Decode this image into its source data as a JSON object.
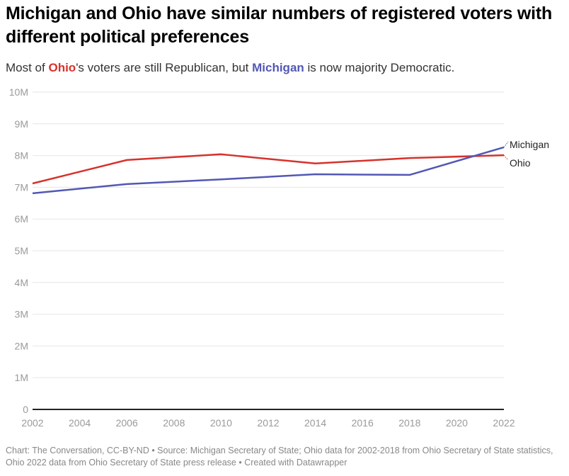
{
  "header": {
    "title": "Michigan and Ohio have similar numbers of registered voters with different political preferences",
    "subtitle_parts": {
      "p1": "Most of ",
      "ohio": "Ohio",
      "p2": "'s voters are still Republican, but ",
      "michigan": "Michigan",
      "p3": " is now majority Democratic."
    }
  },
  "footer": {
    "text": "Chart: The Conversation, CC-BY-ND • Source: Michigan Secretary of State; Ohio data for 2002-2018 from Ohio Secretary of State statistics, Ohio 2022 data from Ohio Secretary of State press release • Created with Datawrapper"
  },
  "chart_data": {
    "type": "line",
    "title": "Michigan and Ohio have similar numbers of registered voters with different political preferences",
    "subtitle": "Most of Ohio's voters are still Republican, but Michigan is now majority Democratic.",
    "xlabel": "",
    "ylabel": "",
    "x": [
      2002,
      2006,
      2010,
      2014,
      2018,
      2022
    ],
    "xlim": [
      2002,
      2022
    ],
    "ylim": [
      0,
      10000000
    ],
    "xticks": [
      "2002",
      "2004",
      "2006",
      "2008",
      "2010",
      "2012",
      "2014",
      "2016",
      "2018",
      "2020",
      "2022"
    ],
    "xtick_values": [
      2002,
      2004,
      2006,
      2008,
      2010,
      2012,
      2014,
      2016,
      2018,
      2020,
      2022
    ],
    "yticks": [
      "0",
      "1M",
      "2M",
      "3M",
      "4M",
      "5M",
      "6M",
      "7M",
      "8M",
      "9M",
      "10M"
    ],
    "ytick_values": [
      0,
      1000000,
      2000000,
      3000000,
      4000000,
      5000000,
      6000000,
      7000000,
      8000000,
      9000000,
      10000000
    ],
    "grid": true,
    "legend": "direct labels at right end of lines",
    "series": [
      {
        "name": "Ohio",
        "color": "#d6322b",
        "values": [
          7120000,
          7860000,
          8040000,
          7750000,
          7920000,
          8010000
        ]
      },
      {
        "name": "Michigan",
        "color": "#5258b3",
        "values": [
          6810000,
          7100000,
          7250000,
          7410000,
          7390000,
          8260000
        ]
      }
    ]
  }
}
